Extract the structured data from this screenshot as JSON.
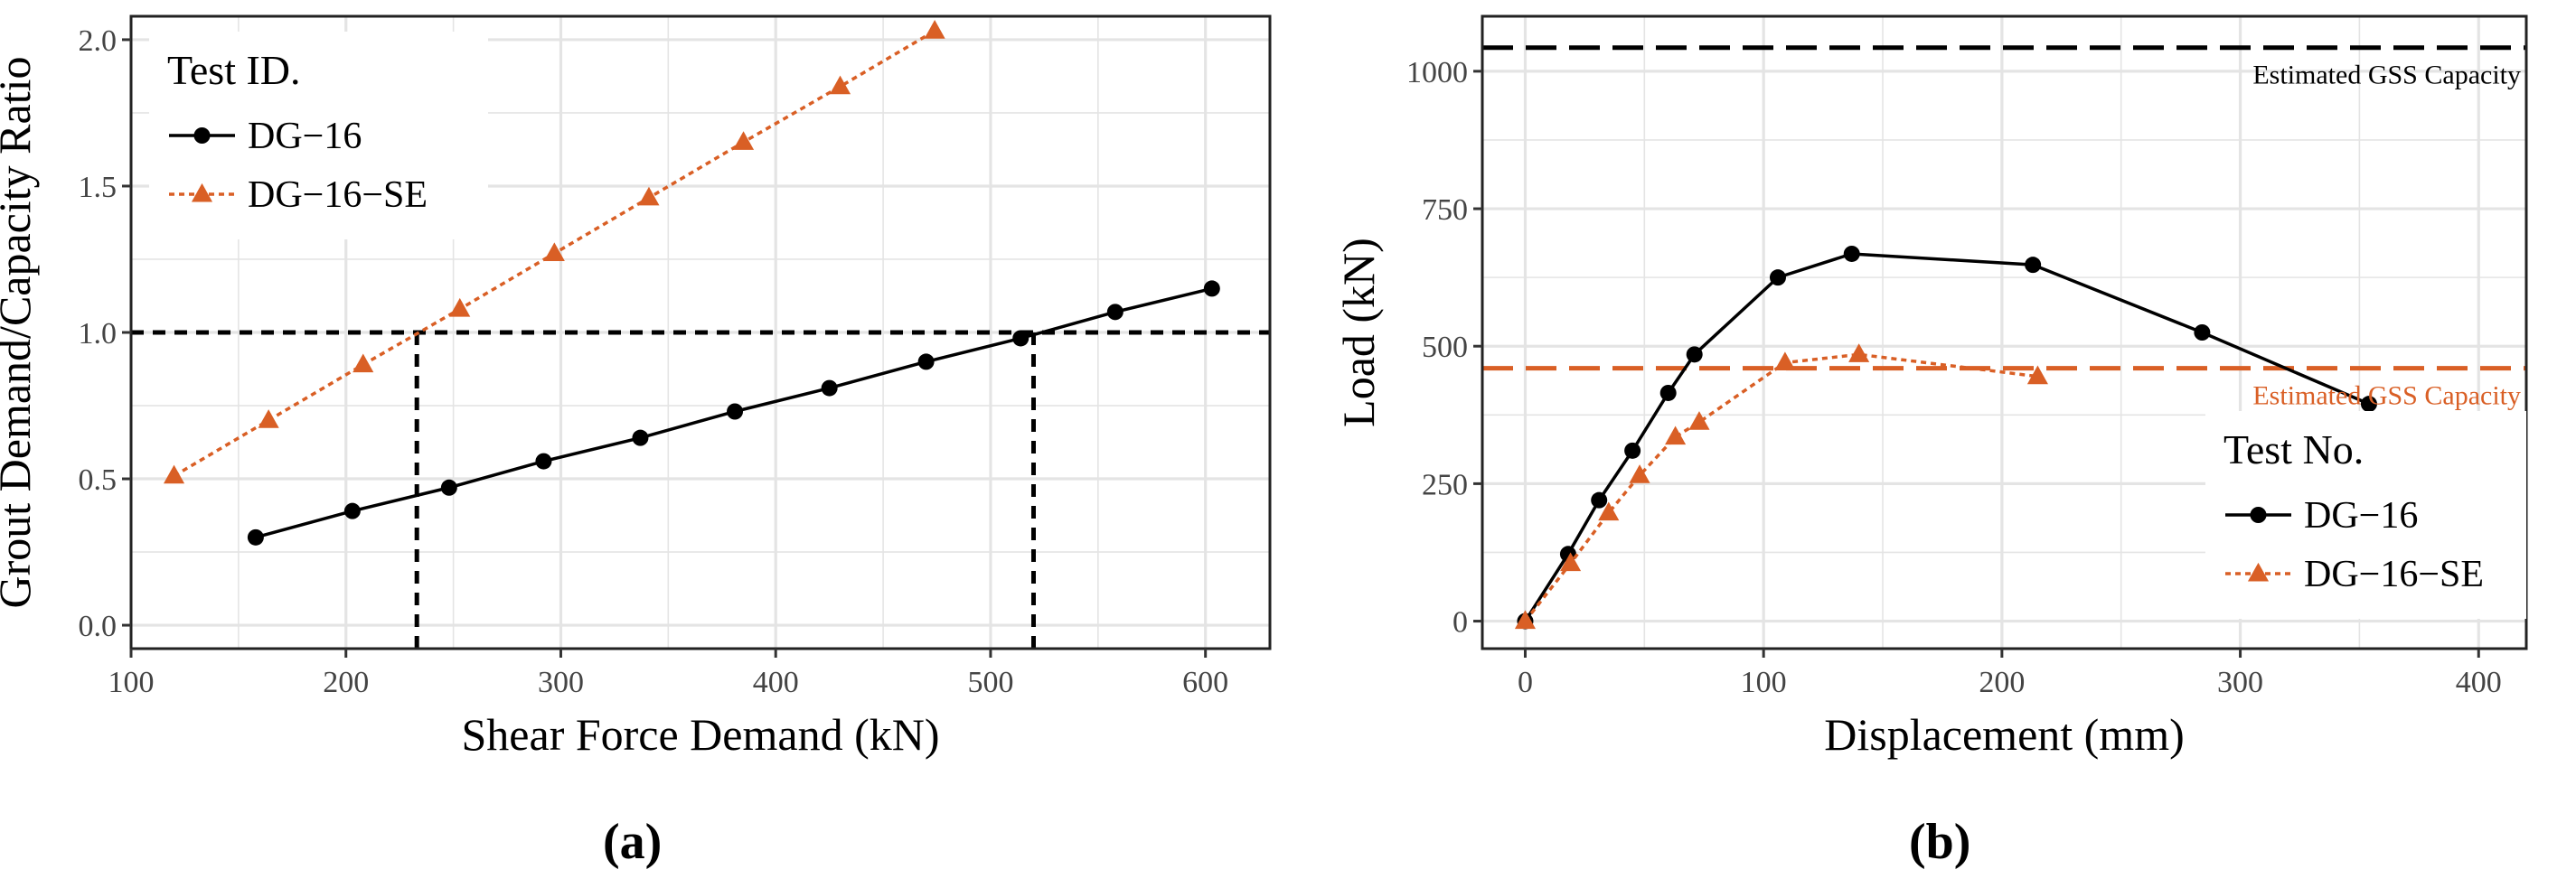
{
  "panels": [
    {
      "caption": "(a)"
    },
    {
      "caption": "(b)"
    }
  ],
  "chart_data": [
    {
      "type": "line",
      "xlabel": "Shear Force Demand (kN)",
      "ylabel": "Grout Demand/Capacity Ratio",
      "xlim": [
        100,
        630
      ],
      "ylim": [
        -0.08,
        2.08
      ],
      "xticks": [
        100,
        200,
        300,
        400,
        500,
        600
      ],
      "yticks": [
        0.0,
        0.5,
        1.0,
        1.5,
        2.0
      ],
      "ytick_labels": [
        "0.0",
        "0.5",
        "1.0",
        "1.5",
        "2.0"
      ],
      "grid": true,
      "legend": {
        "title": "Test ID.",
        "position": "top-left"
      },
      "series": [
        {
          "name": "DG−16",
          "color": "#000000",
          "marker": "circle",
          "line": "solid",
          "x": [
            158,
            203,
            248,
            292,
            337,
            381,
            425,
            470,
            514,
            558,
            603
          ],
          "y": [
            0.3,
            0.39,
            0.47,
            0.56,
            0.64,
            0.73,
            0.81,
            0.9,
            0.98,
            1.07,
            1.15
          ]
        },
        {
          "name": "DG−16−SE",
          "color": "#D95F25",
          "marker": "triangle",
          "line": "dotted",
          "x": [
            120,
            164,
            208,
            253,
            297,
            341,
            385,
            430,
            474
          ],
          "y": [
            0.51,
            0.7,
            0.89,
            1.08,
            1.27,
            1.46,
            1.65,
            1.84,
            2.03
          ]
        }
      ],
      "reference_lines": [
        {
          "orientation": "horizontal",
          "value": 1.0,
          "color": "#000000"
        },
        {
          "orientation": "vertical",
          "value": 233,
          "ymax": 1.0,
          "color": "#000000"
        },
        {
          "orientation": "vertical",
          "value": 520,
          "ymax": 1.0,
          "color": "#000000"
        }
      ]
    },
    {
      "type": "line",
      "xlabel": "Displacement (mm)",
      "ylabel": "Load (kN)",
      "xlim": [
        -18,
        420
      ],
      "ylim": [
        -50,
        1100
      ],
      "xticks": [
        0,
        100,
        200,
        300,
        400
      ],
      "yticks": [
        0,
        250,
        500,
        750,
        1000
      ],
      "grid": true,
      "legend": {
        "title": "Test No.",
        "position": "bottom-right"
      },
      "series": [
        {
          "name": "DG−16",
          "color": "#000000",
          "marker": "circle",
          "line": "solid",
          "x": [
            0,
            18,
            31,
            45,
            60,
            71,
            106,
            137,
            213,
            284,
            354
          ],
          "y": [
            0,
            122,
            220,
            310,
            415,
            485,
            625,
            668,
            648,
            525,
            395
          ]
        },
        {
          "name": "DG−16−SE",
          "color": "#D95F25",
          "marker": "triangle",
          "line": "dotted",
          "x": [
            0,
            19,
            35,
            48,
            63,
            73,
            109,
            140,
            215
          ],
          "y": [
            0,
            105,
            197,
            265,
            335,
            362,
            470,
            485,
            445
          ]
        }
      ],
      "reference_lines": [
        {
          "orientation": "horizontal",
          "value": 1043,
          "color": "#000000",
          "label": "Estimated GSS Capacity"
        },
        {
          "orientation": "horizontal",
          "value": 460,
          "color": "#D95F25",
          "label": "Estimated GSS Capacity"
        }
      ]
    }
  ]
}
